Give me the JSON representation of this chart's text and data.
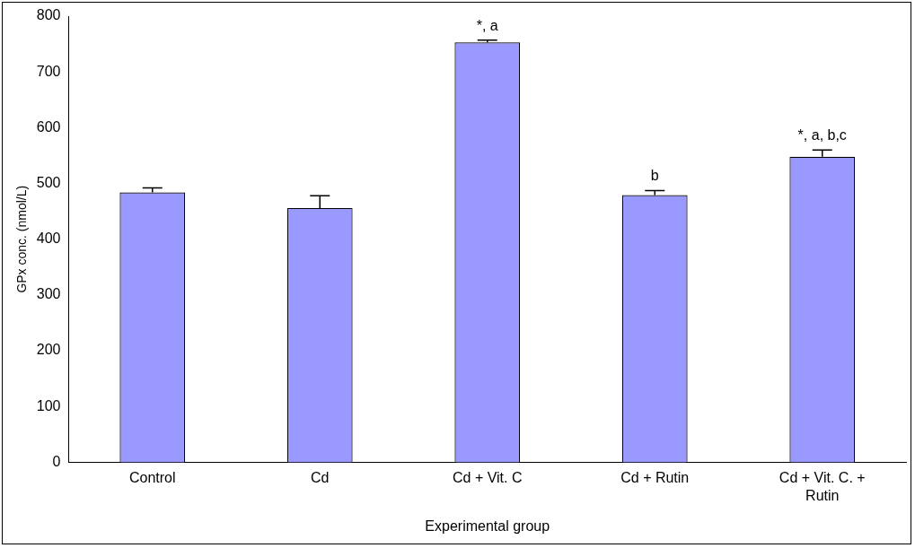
{
  "chart_data": {
    "type": "bar",
    "categories": [
      "Control",
      "Cd",
      "Cd + Vit. C",
      "Cd + Rutin",
      "Cd + Vit. C. + Rutin"
    ],
    "values": [
      484,
      456,
      753,
      479,
      548
    ],
    "errors": [
      [
        484,
        492
      ],
      [
        456,
        478
      ],
      [
        753,
        757
      ],
      [
        479,
        487
      ],
      [
        548,
        560
      ]
    ],
    "color": "#9999ff",
    "xlabel": "Experimental group",
    "ylabel": "GPx conc. (nmol/L)",
    "ylim": [
      0,
      800
    ],
    "yticks": [
      0,
      100,
      200,
      300,
      400,
      500,
      600,
      700,
      800
    ],
    "grid": false,
    "legend": false,
    "annotations": [
      {
        "text": "*, a",
        "x": "Cd + Vit. C",
        "y": 755
      },
      {
        "text": "b",
        "x": "Cd + Rutin",
        "y": 487
      },
      {
        "text": "*, a, b,c",
        "x": "Cd + Vit. C. + Rutin",
        "y": 560
      }
    ]
  }
}
